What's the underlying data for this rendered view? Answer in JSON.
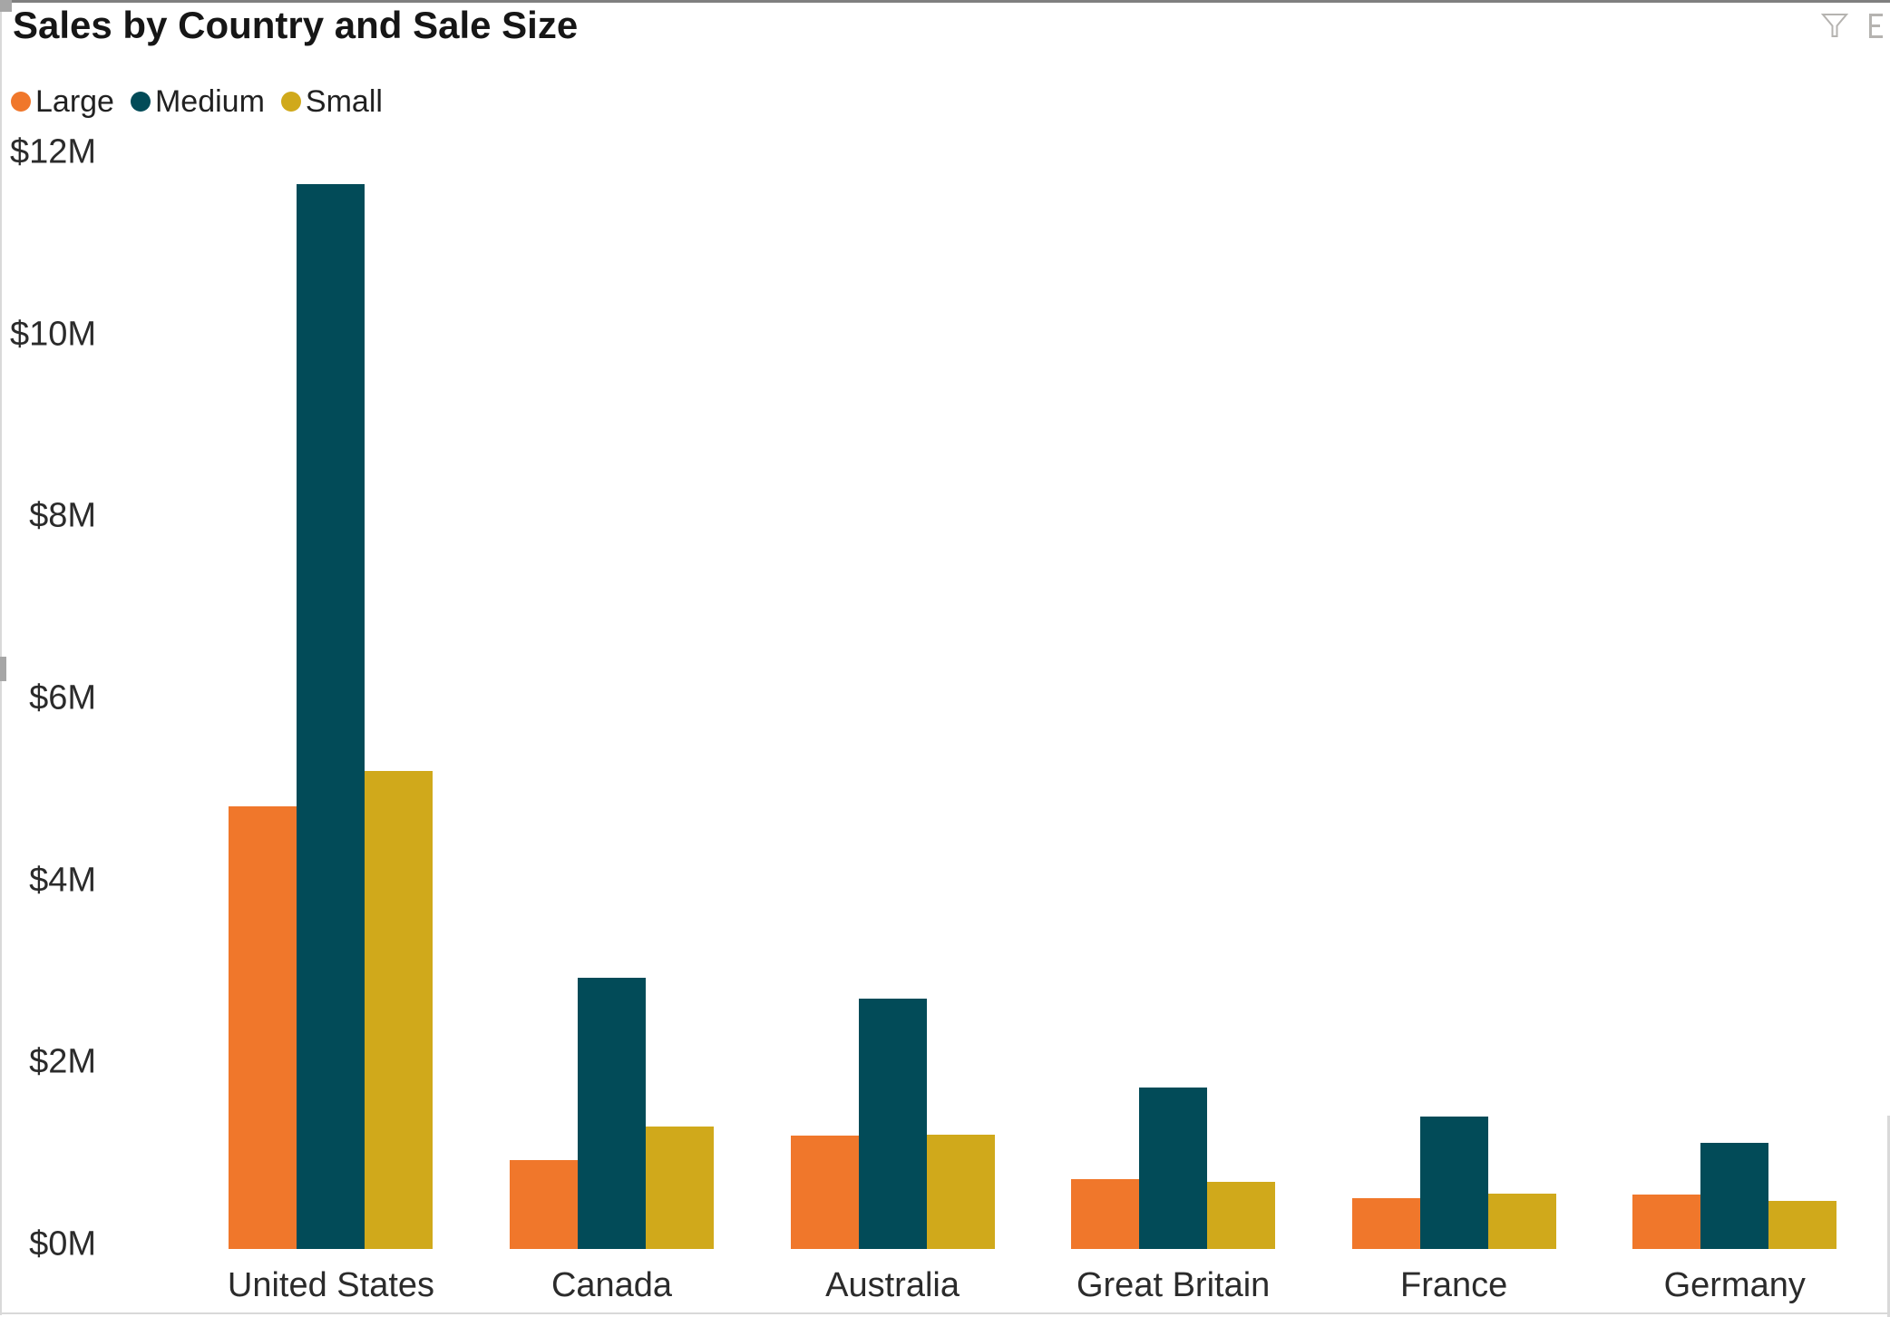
{
  "chart_data": {
    "type": "bar",
    "title": "Sales by Country and Sale Size",
    "categories": [
      "United States",
      "Canada",
      "Australia",
      "Great Britain",
      "France",
      "Germany"
    ],
    "series": [
      {
        "name": "Large",
        "color": "#F0772B",
        "values": [
          4.86,
          0.98,
          1.25,
          0.77,
          0.56,
          0.6
        ]
      },
      {
        "name": "Medium",
        "color": "#024B58",
        "values": [
          11.7,
          2.98,
          2.75,
          1.77,
          1.45,
          1.17
        ]
      },
      {
        "name": "Small",
        "color": "#D0A91B",
        "values": [
          5.25,
          1.35,
          1.26,
          0.74,
          0.61,
          0.53
        ]
      }
    ],
    "y_ticks": [
      {
        "label": "$0M",
        "value": 0
      },
      {
        "label": "$2M",
        "value": 2
      },
      {
        "label": "$4M",
        "value": 4
      },
      {
        "label": "$6M",
        "value": 6
      },
      {
        "label": "$8M",
        "value": 8
      },
      {
        "label": "$10M",
        "value": 10
      },
      {
        "label": "$12M",
        "value": 12
      }
    ],
    "ylim": [
      0,
      12
    ],
    "xlabel": "",
    "ylabel": "",
    "grid": false,
    "legend_position": "top-left",
    "value_unit": "USD millions"
  },
  "legend": {
    "items": [
      {
        "label": "Large",
        "color": "#F0772B"
      },
      {
        "label": "Medium",
        "color": "#024B58"
      },
      {
        "label": "Small",
        "color": "#D0A91B"
      }
    ]
  },
  "toolbar": {
    "filter_icon": "funnel-filter",
    "clipped_icon": "focus-mode-clipped"
  },
  "chrome": {
    "handle_color": "#a6a6a6",
    "top_line_color": "#7f7f7f",
    "border_color": "#d9d9d9",
    "icon_color": "#b5b3b0"
  }
}
